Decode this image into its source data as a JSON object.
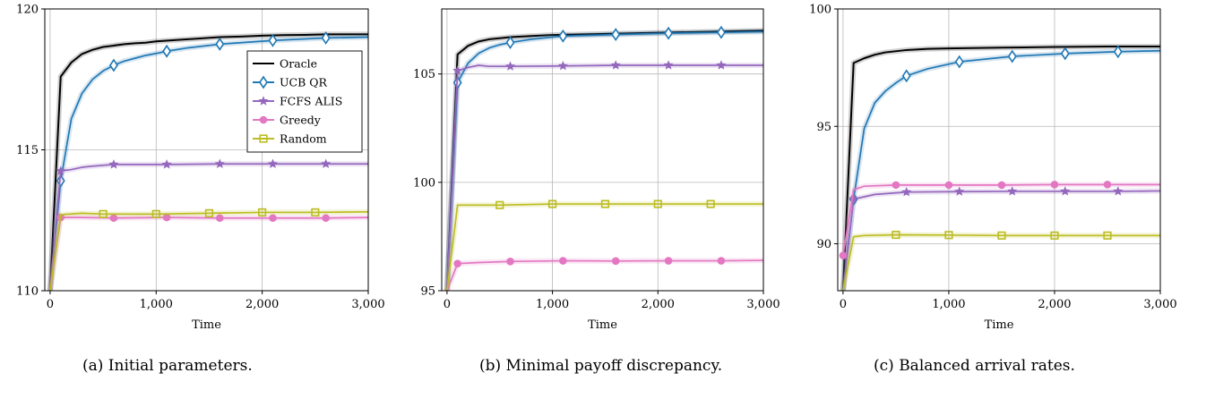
{
  "chart_data": [
    {
      "type": "line",
      "caption": "(a) Initial parameters.",
      "xlabel": "Time",
      "ylabel": "",
      "xlim": [
        -50,
        3000
      ],
      "ylim": [
        110,
        120
      ],
      "xticks": [
        0,
        1000,
        2000,
        3000
      ],
      "xtick_labels": [
        "0",
        "1,000",
        "2,000",
        "3,000"
      ],
      "yticks": [
        110,
        115,
        120
      ],
      "ytick_labels": [
        "110",
        "115",
        "120"
      ],
      "grid": true,
      "legend": "right",
      "series": [
        {
          "name": "Oracle",
          "color": "#000000",
          "marker": "none",
          "x": [
            0,
            100,
            200,
            300,
            400,
            500,
            600,
            700,
            800,
            900,
            1000,
            1200,
            1400,
            1600,
            1800,
            2000,
            2200,
            2400,
            2600,
            2800,
            3000
          ],
          "y": [
            110,
            117.6,
            118.1,
            118.4,
            118.55,
            118.65,
            118.7,
            118.75,
            118.78,
            118.8,
            118.85,
            118.9,
            118.95,
            119.0,
            119.02,
            119.05,
            119.07,
            119.08,
            119.1,
            119.1,
            119.1
          ]
        },
        {
          "name": "UCB QR",
          "color": "#1f77b4",
          "marker": "diamond",
          "x": [
            0,
            100,
            200,
            300,
            400,
            500,
            600,
            700,
            800,
            900,
            1000,
            1100,
            1300,
            1600,
            2100,
            2600,
            3000
          ],
          "y": [
            110,
            113.9,
            116.1,
            117.0,
            117.5,
            117.8,
            118.0,
            118.15,
            118.25,
            118.35,
            118.42,
            118.5,
            118.62,
            118.75,
            118.88,
            118.97,
            119.0
          ],
          "marker_x": [
            100,
            600,
            1100,
            1600,
            2100,
            2600
          ]
        },
        {
          "name": "FCFS ALIS",
          "color": "#9467bd",
          "marker": "star",
          "x": [
            0,
            100,
            200,
            300,
            400,
            600,
            1100,
            1600,
            2100,
            2600,
            3000
          ],
          "y": [
            110,
            114.25,
            114.3,
            114.38,
            114.42,
            114.48,
            114.48,
            114.5,
            114.5,
            114.5,
            114.5
          ],
          "marker_x": [
            100,
            600,
            1100,
            1600,
            2100,
            2600
          ]
        },
        {
          "name": "Greedy",
          "color": "#e377c2",
          "marker": "circle",
          "x": [
            0,
            100,
            300,
            600,
            1100,
            1600,
            2100,
            2600,
            3000
          ],
          "y": [
            110,
            112.6,
            112.6,
            112.58,
            112.6,
            112.58,
            112.58,
            112.58,
            112.6
          ],
          "marker_x": [
            100,
            600,
            1100,
            1600,
            2100,
            2600
          ]
        },
        {
          "name": "Random",
          "color": "#bcbd22",
          "marker": "square",
          "x": [
            0,
            100,
            300,
            500,
            1000,
            1500,
            2000,
            2500,
            3000
          ],
          "y": [
            110,
            112.7,
            112.75,
            112.72,
            112.72,
            112.75,
            112.78,
            112.78,
            112.8
          ],
          "marker_x": [
            500,
            1000,
            1500,
            2000,
            2500
          ]
        }
      ]
    },
    {
      "type": "line",
      "caption": "(b) Minimal payoff discrepancy.",
      "xlabel": "Time",
      "ylabel": "",
      "xlim": [
        -50,
        3000
      ],
      "ylim": [
        95,
        108
      ],
      "xticks": [
        0,
        1000,
        2000,
        3000
      ],
      "xtick_labels": [
        "0",
        "1,000",
        "2,000",
        "3,000"
      ],
      "yticks": [
        95,
        100,
        105
      ],
      "ytick_labels": [
        "95",
        "100",
        "105"
      ],
      "grid": true,
      "legend": "none",
      "series": [
        {
          "name": "Oracle",
          "color": "#000000",
          "marker": "none",
          "x": [
            0,
            100,
            200,
            300,
            400,
            500,
            600,
            800,
            1000,
            1500,
            2000,
            2500,
            3000
          ],
          "y": [
            95,
            105.9,
            106.3,
            106.5,
            106.6,
            106.65,
            106.7,
            106.75,
            106.8,
            106.85,
            106.9,
            106.95,
            107.0
          ]
        },
        {
          "name": "UCB QR",
          "color": "#1f77b4",
          "marker": "diamond",
          "x": [
            0,
            100,
            200,
            300,
            400,
            500,
            600,
            800,
            1100,
            1600,
            2100,
            2600,
            3000
          ],
          "y": [
            95,
            104.6,
            105.5,
            105.95,
            106.2,
            106.35,
            106.45,
            106.6,
            106.75,
            106.82,
            106.88,
            106.92,
            106.95
          ],
          "marker_x": [
            100,
            600,
            1100,
            1600,
            2100,
            2600
          ]
        },
        {
          "name": "FCFS ALIS",
          "color": "#9467bd",
          "marker": "star",
          "x": [
            0,
            100,
            200,
            300,
            400,
            600,
            1100,
            1600,
            2100,
            2600,
            3000
          ],
          "y": [
            95,
            105.15,
            105.3,
            105.4,
            105.35,
            105.35,
            105.37,
            105.4,
            105.4,
            105.4,
            105.4
          ],
          "marker_x": [
            100,
            600,
            1100,
            1600,
            2100,
            2600
          ]
        },
        {
          "name": "Greedy",
          "color": "#e377c2",
          "marker": "circle",
          "x": [
            0,
            100,
            300,
            600,
            1100,
            1600,
            2100,
            2600,
            3000
          ],
          "y": [
            95,
            96.25,
            96.3,
            96.35,
            96.38,
            96.37,
            96.38,
            96.38,
            96.4
          ],
          "marker_x": [
            100,
            600,
            1100,
            1600,
            2100,
            2600
          ]
        },
        {
          "name": "Random",
          "color": "#bcbd22",
          "marker": "square",
          "x": [
            0,
            100,
            300,
            500,
            1000,
            1500,
            2000,
            2500,
            3000
          ],
          "y": [
            95,
            98.95,
            98.95,
            98.95,
            99.0,
            99.0,
            99.0,
            99.0,
            99.0
          ],
          "marker_x": [
            500,
            1000,
            1500,
            2000,
            2500
          ]
        }
      ]
    },
    {
      "type": "line",
      "caption": "(c) Balanced arrival rates.",
      "xlabel": "Time",
      "ylabel": "",
      "xlim": [
        -50,
        3000
      ],
      "ylim": [
        88,
        100
      ],
      "xticks": [
        0,
        1000,
        2000,
        3000
      ],
      "xtick_labels": [
        "0",
        "1,000",
        "2,000",
        "3,000"
      ],
      "yticks": [
        90,
        95,
        100
      ],
      "ytick_labels": [
        "90",
        "95",
        "100"
      ],
      "grid": true,
      "legend": "none",
      "series": [
        {
          "name": "Oracle",
          "color": "#000000",
          "marker": "none",
          "x": [
            0,
            100,
            200,
            300,
            400,
            600,
            800,
            1000,
            1500,
            2000,
            2500,
            3000
          ],
          "y": [
            88,
            97.7,
            97.9,
            98.05,
            98.15,
            98.25,
            98.3,
            98.32,
            98.35,
            98.38,
            98.4,
            98.4
          ]
        },
        {
          "name": "UCB QR",
          "color": "#1f77b4",
          "marker": "diamond",
          "x": [
            0,
            100,
            200,
            300,
            400,
            500,
            600,
            800,
            1100,
            1600,
            2100,
            2600,
            3000
          ],
          "y": [
            88,
            91.9,
            94.9,
            96.0,
            96.5,
            96.85,
            97.15,
            97.45,
            97.75,
            97.98,
            98.1,
            98.18,
            98.22
          ],
          "marker_x": [
            100,
            600,
            1100,
            1600,
            2100,
            2600
          ]
        },
        {
          "name": "FCFS ALIS",
          "color": "#9467bd",
          "marker": "star",
          "x": [
            0,
            100,
            200,
            300,
            600,
            1100,
            1600,
            2100,
            2600,
            3000
          ],
          "y": [
            88,
            91.9,
            92.0,
            92.1,
            92.2,
            92.22,
            92.23,
            92.23,
            92.23,
            92.25
          ],
          "marker_x": [
            100,
            600,
            1100,
            1600,
            2100,
            2600
          ]
        },
        {
          "name": "Greedy",
          "color": "#e377c2",
          "marker": "circle",
          "x": [
            0,
            100,
            200,
            500,
            1000,
            1500,
            2000,
            2500,
            3000
          ],
          "y": [
            89.5,
            92.3,
            92.45,
            92.5,
            92.5,
            92.5,
            92.52,
            92.52,
            92.52
          ],
          "marker_x": [
            0,
            500,
            1000,
            1500,
            2000,
            2500
          ]
        },
        {
          "name": "Random",
          "color": "#bcbd22",
          "marker": "square",
          "x": [
            0,
            100,
            200,
            500,
            1000,
            1500,
            2000,
            2500,
            3000
          ],
          "y": [
            88,
            90.3,
            90.35,
            90.38,
            90.37,
            90.35,
            90.35,
            90.35,
            90.35
          ],
          "marker_x": [
            500,
            1000,
            1500,
            2000,
            2500
          ]
        }
      ]
    }
  ]
}
